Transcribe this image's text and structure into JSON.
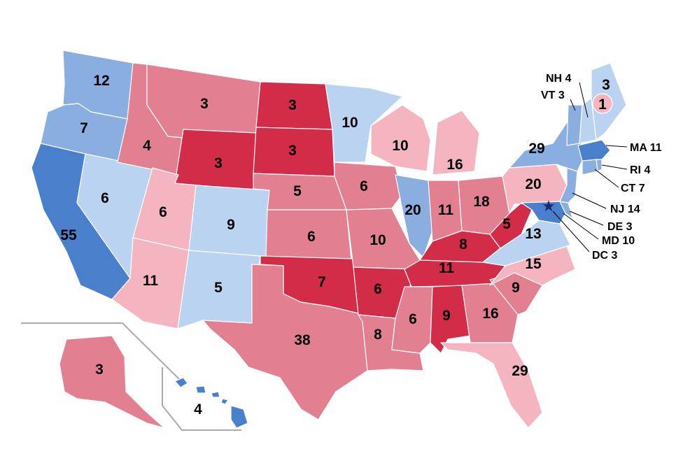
{
  "palette": {
    "solid_d": "#4a7fcb",
    "likely_d": "#8aaee0",
    "lean_d": "#b9d3f1",
    "solid_r": "#d22c49",
    "likely_r": "#e27f90",
    "lean_r": "#f4b5c1",
    "dc_star": "#1c2a6b",
    "inset_border": "#aaaaaa"
  },
  "states": {
    "WA": {
      "votes": "12",
      "category": "likely_d"
    },
    "OR": {
      "votes": "7",
      "category": "likely_d"
    },
    "CA": {
      "votes": "55",
      "category": "solid_d"
    },
    "NV": {
      "votes": "6",
      "category": "lean_d"
    },
    "ID": {
      "votes": "4",
      "category": "likely_r"
    },
    "MT": {
      "votes": "3",
      "category": "likely_r"
    },
    "WY": {
      "votes": "3",
      "category": "solid_r"
    },
    "UT": {
      "votes": "6",
      "category": "lean_r"
    },
    "AZ": {
      "votes": "11",
      "category": "lean_r"
    },
    "CO": {
      "votes": "9",
      "category": "lean_d"
    },
    "NM": {
      "votes": "5",
      "category": "lean_d"
    },
    "ND": {
      "votes": "3",
      "category": "solid_r"
    },
    "SD": {
      "votes": "3",
      "category": "solid_r"
    },
    "NE": {
      "votes": "5",
      "category": "likely_r"
    },
    "KS": {
      "votes": "6",
      "category": "likely_r"
    },
    "OK": {
      "votes": "7",
      "category": "solid_r"
    },
    "TX": {
      "votes": "38",
      "category": "likely_r"
    },
    "MN": {
      "votes": "10",
      "category": "lean_d"
    },
    "IA": {
      "votes": "6",
      "category": "likely_r"
    },
    "MO": {
      "votes": "10",
      "category": "likely_r"
    },
    "AR": {
      "votes": "6",
      "category": "solid_r"
    },
    "LA": {
      "votes": "8",
      "category": "likely_r"
    },
    "WI": {
      "votes": "10",
      "category": "lean_r"
    },
    "IL": {
      "votes": "20",
      "category": "likely_d"
    },
    "MI": {
      "votes": "16",
      "category": "lean_r"
    },
    "IN": {
      "votes": "11",
      "category": "likely_r"
    },
    "OH": {
      "votes": "18",
      "category": "likely_r"
    },
    "KY": {
      "votes": "8",
      "category": "solid_r"
    },
    "TN": {
      "votes": "11",
      "category": "solid_r"
    },
    "MS": {
      "votes": "6",
      "category": "likely_r"
    },
    "AL": {
      "votes": "9",
      "category": "solid_r"
    },
    "GA": {
      "votes": "16",
      "category": "likely_r"
    },
    "FL": {
      "votes": "29",
      "category": "lean_r"
    },
    "SC": {
      "votes": "9",
      "category": "likely_r"
    },
    "NC": {
      "votes": "15",
      "category": "lean_r"
    },
    "VA": {
      "votes": "13",
      "category": "lean_d"
    },
    "WV": {
      "votes": "5",
      "category": "solid_r"
    },
    "PA": {
      "votes": "20",
      "category": "lean_r"
    },
    "NY": {
      "votes": "29",
      "category": "likely_d"
    },
    "ME": {
      "votes": "3",
      "category": "lean_d"
    },
    "ME2": {
      "votes": "1",
      "category": "lean_r"
    },
    "AK": {
      "votes": "3",
      "category": "likely_r"
    },
    "HI": {
      "votes": "4",
      "category": "solid_d"
    },
    "VT": {
      "category": "likely_d"
    },
    "NH": {
      "category": "lean_d"
    },
    "MA": {
      "category": "solid_d"
    },
    "CT": {
      "category": "likely_d"
    },
    "RI": {
      "category": "likely_d"
    },
    "NJ": {
      "category": "likely_d"
    },
    "DE": {
      "category": "likely_d"
    },
    "MD": {
      "category": "solid_d"
    }
  },
  "callouts": {
    "NH": "NH 4",
    "VT": "VT 3",
    "MA": "MA 11",
    "RI": "RI 4",
    "CT": "CT 7",
    "NJ": "NJ 14",
    "DE": "DE 3",
    "MD": "MD 10",
    "DC": "DC 3"
  },
  "dc_marker_symbol": "★"
}
